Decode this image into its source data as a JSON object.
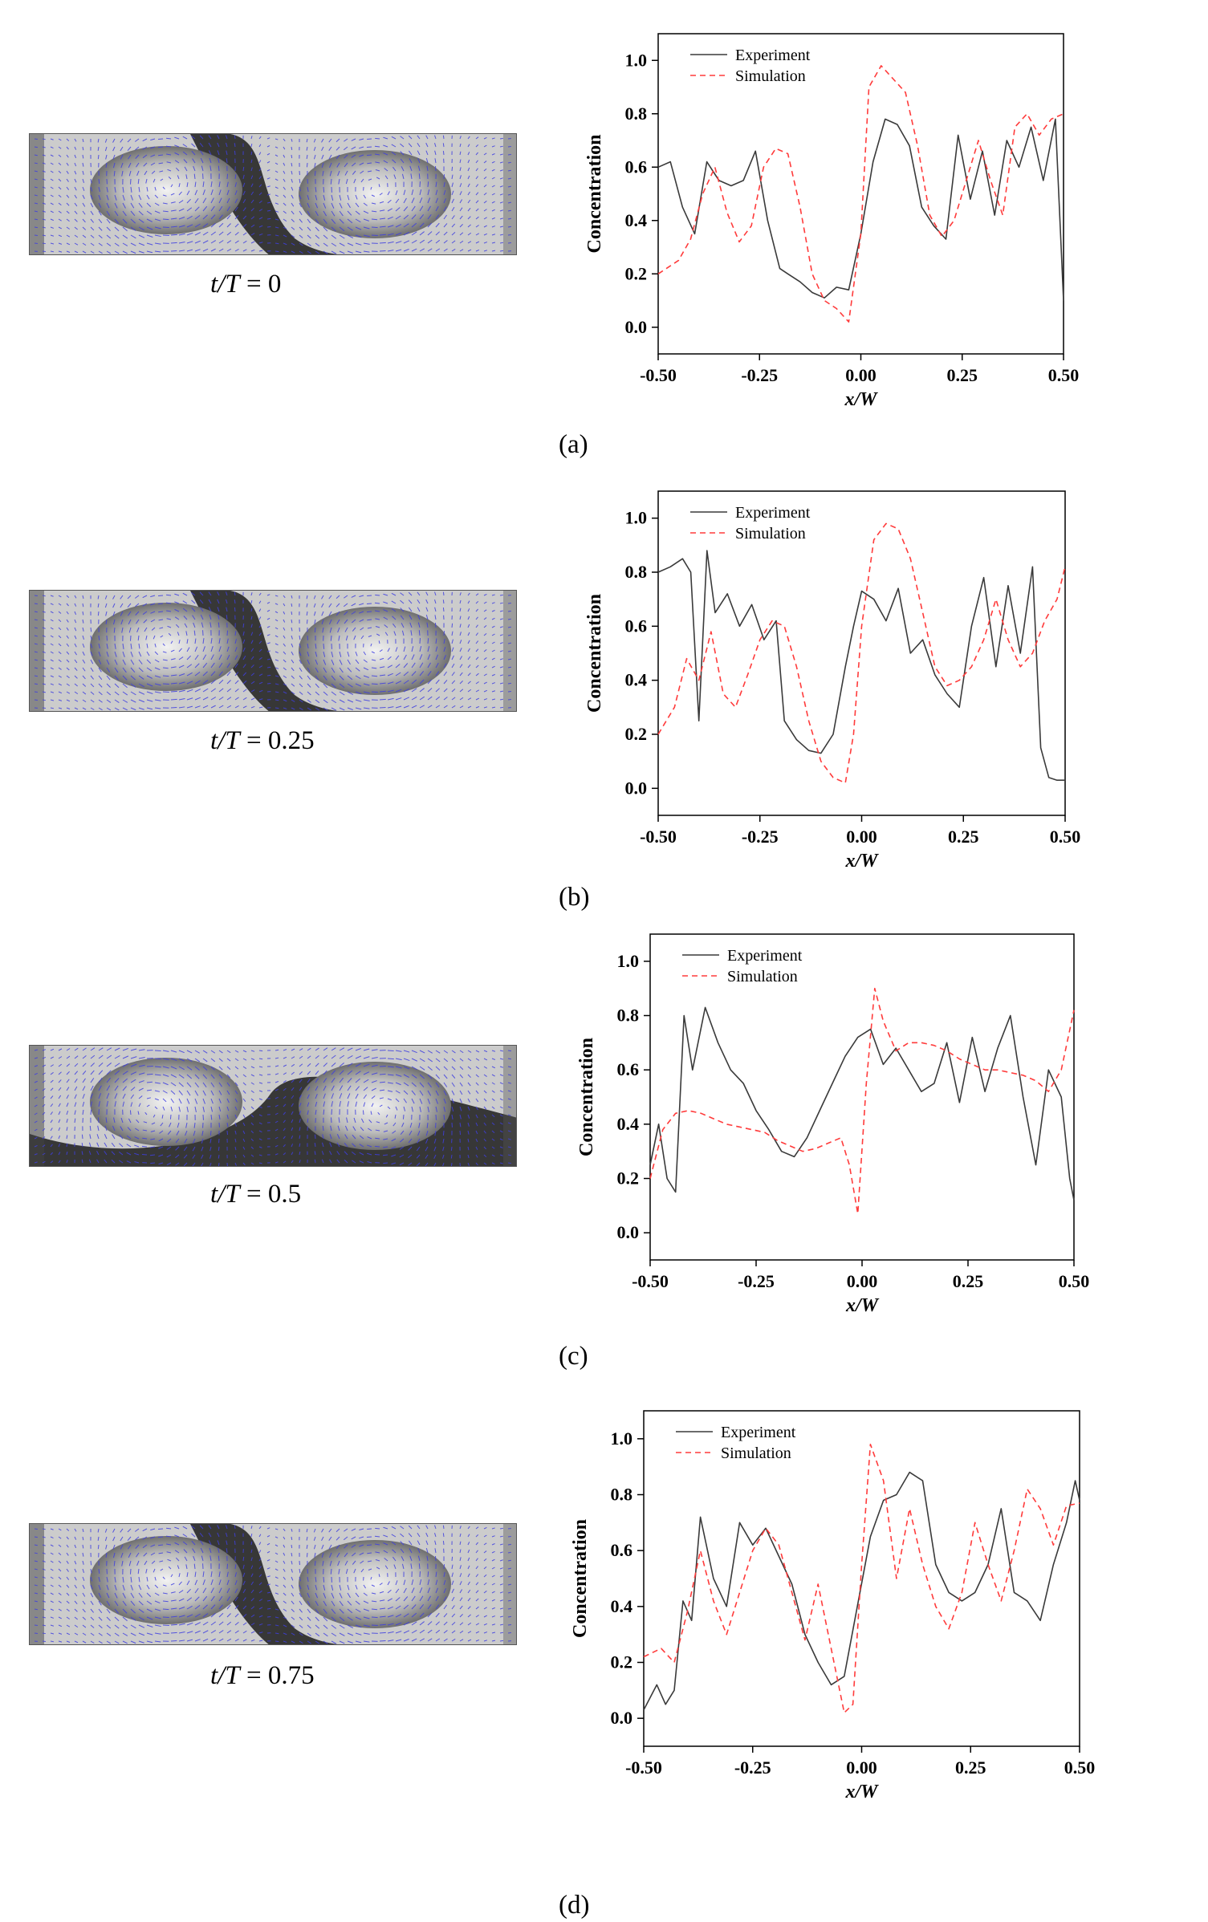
{
  "panels": [
    {
      "label": "(a)",
      "time_var": "t/T",
      "time_eq": "= 0"
    },
    {
      "label": "(b)",
      "time_var": "t/T",
      "time_eq": "= 0.25"
    },
    {
      "label": "(c)",
      "time_var": "t/T",
      "time_eq": "= 0.5"
    },
    {
      "label": "(d)",
      "time_var": "t/T",
      "time_eq": "= 0.75"
    }
  ],
  "colors": {
    "experiment": "#3a3a3a",
    "simulation": "#ff3b3b",
    "vectors": "#3f3fe0"
  },
  "chart_data": [
    {
      "type": "line",
      "xlabel": "x/W",
      "ylabel": "Concentration",
      "xlim": [
        -0.5,
        0.5
      ],
      "ylim": [
        -0.1,
        1.1
      ],
      "xticks": [
        "-0.50",
        "-0.25",
        "0.00",
        "0.25",
        "0.50"
      ],
      "yticks": [
        "0.0",
        "0.2",
        "0.4",
        "0.6",
        "0.8",
        "1.0"
      ],
      "legend": "top-left",
      "series": [
        {
          "name": "Experiment",
          "style": "solid",
          "x": [
            -0.5,
            -0.47,
            -0.44,
            -0.41,
            -0.38,
            -0.35,
            -0.32,
            -0.29,
            -0.26,
            -0.23,
            -0.2,
            -0.18,
            -0.15,
            -0.12,
            -0.09,
            -0.06,
            -0.03,
            0.0,
            0.03,
            0.06,
            0.09,
            0.12,
            0.15,
            0.18,
            0.21,
            0.24,
            0.27,
            0.3,
            0.33,
            0.36,
            0.39,
            0.42,
            0.45,
            0.48,
            0.5
          ],
          "y": [
            0.6,
            0.62,
            0.45,
            0.35,
            0.62,
            0.55,
            0.53,
            0.55,
            0.66,
            0.4,
            0.22,
            0.2,
            0.17,
            0.13,
            0.11,
            0.15,
            0.14,
            0.35,
            0.62,
            0.78,
            0.76,
            0.68,
            0.45,
            0.38,
            0.33,
            0.72,
            0.48,
            0.66,
            0.42,
            0.7,
            0.6,
            0.75,
            0.55,
            0.78,
            0.1
          ]
        },
        {
          "name": "Simulation",
          "style": "dashed",
          "x": [
            -0.5,
            -0.45,
            -0.42,
            -0.39,
            -0.36,
            -0.33,
            -0.3,
            -0.27,
            -0.24,
            -0.21,
            -0.18,
            -0.15,
            -0.12,
            -0.09,
            -0.06,
            -0.03,
            0.0,
            0.02,
            0.05,
            0.08,
            0.11,
            0.14,
            0.17,
            0.2,
            0.23,
            0.26,
            0.29,
            0.32,
            0.35,
            0.38,
            0.41,
            0.44,
            0.47,
            0.5
          ],
          "y": [
            0.2,
            0.25,
            0.33,
            0.5,
            0.6,
            0.43,
            0.32,
            0.38,
            0.6,
            0.67,
            0.65,
            0.45,
            0.2,
            0.1,
            0.07,
            0.02,
            0.35,
            0.9,
            0.98,
            0.93,
            0.88,
            0.68,
            0.42,
            0.34,
            0.4,
            0.55,
            0.7,
            0.55,
            0.42,
            0.75,
            0.8,
            0.72,
            0.78,
            0.8
          ]
        }
      ]
    },
    {
      "type": "line",
      "xlabel": "x/W",
      "ylabel": "Concentration",
      "xlim": [
        -0.5,
        0.5
      ],
      "ylim": [
        -0.1,
        1.1
      ],
      "xticks": [
        "-0.50",
        "-0.25",
        "0.00",
        "0.25",
        "0.50"
      ],
      "yticks": [
        "0.0",
        "0.2",
        "0.4",
        "0.6",
        "0.8",
        "1.0"
      ],
      "legend": "top-left",
      "series": [
        {
          "name": "Experiment",
          "style": "solid",
          "x": [
            -0.5,
            -0.47,
            -0.44,
            -0.42,
            -0.4,
            -0.38,
            -0.36,
            -0.33,
            -0.3,
            -0.27,
            -0.24,
            -0.21,
            -0.19,
            -0.16,
            -0.13,
            -0.1,
            -0.07,
            -0.04,
            -0.02,
            0.0,
            0.03,
            0.06,
            0.09,
            0.12,
            0.15,
            0.18,
            0.21,
            0.24,
            0.27,
            0.3,
            0.33,
            0.36,
            0.39,
            0.42,
            0.44,
            0.46,
            0.48,
            0.5
          ],
          "y": [
            0.8,
            0.82,
            0.85,
            0.8,
            0.25,
            0.88,
            0.65,
            0.72,
            0.6,
            0.68,
            0.55,
            0.62,
            0.25,
            0.18,
            0.14,
            0.13,
            0.2,
            0.45,
            0.6,
            0.73,
            0.7,
            0.62,
            0.74,
            0.5,
            0.55,
            0.42,
            0.35,
            0.3,
            0.6,
            0.78,
            0.45,
            0.75,
            0.5,
            0.82,
            0.15,
            0.04,
            0.03,
            0.03
          ]
        },
        {
          "name": "Simulation",
          "style": "dashed",
          "x": [
            -0.5,
            -0.46,
            -0.43,
            -0.4,
            -0.37,
            -0.34,
            -0.31,
            -0.28,
            -0.25,
            -0.22,
            -0.19,
            -0.16,
            -0.13,
            -0.1,
            -0.07,
            -0.04,
            -0.02,
            0.0,
            0.03,
            0.06,
            0.09,
            0.12,
            0.15,
            0.18,
            0.21,
            0.24,
            0.27,
            0.3,
            0.33,
            0.36,
            0.39,
            0.42,
            0.45,
            0.48,
            0.5
          ],
          "y": [
            0.2,
            0.3,
            0.48,
            0.4,
            0.58,
            0.35,
            0.3,
            0.42,
            0.55,
            0.62,
            0.6,
            0.45,
            0.25,
            0.1,
            0.04,
            0.02,
            0.2,
            0.6,
            0.92,
            0.98,
            0.96,
            0.85,
            0.65,
            0.45,
            0.38,
            0.4,
            0.45,
            0.55,
            0.7,
            0.55,
            0.45,
            0.5,
            0.62,
            0.7,
            0.82
          ]
        }
      ]
    },
    {
      "type": "line",
      "xlabel": "x/W",
      "ylabel": "Concentration",
      "xlim": [
        -0.5,
        0.5
      ],
      "ylim": [
        -0.1,
        1.1
      ],
      "xticks": [
        "-0.50",
        "-0.25",
        "0.00",
        "0.25",
        "0.50"
      ],
      "yticks": [
        "0.0",
        "0.2",
        "0.4",
        "0.6",
        "0.8",
        "1.0"
      ],
      "legend": "top-left",
      "series": [
        {
          "name": "Experiment",
          "style": "solid",
          "x": [
            -0.5,
            -0.48,
            -0.46,
            -0.44,
            -0.42,
            -0.4,
            -0.37,
            -0.34,
            -0.31,
            -0.28,
            -0.25,
            -0.22,
            -0.19,
            -0.16,
            -0.13,
            -0.1,
            -0.07,
            -0.04,
            -0.01,
            0.02,
            0.05,
            0.08,
            0.11,
            0.14,
            0.17,
            0.2,
            0.23,
            0.26,
            0.29,
            0.32,
            0.35,
            0.38,
            0.41,
            0.44,
            0.47,
            0.49,
            0.5
          ],
          "y": [
            0.25,
            0.4,
            0.2,
            0.15,
            0.8,
            0.6,
            0.83,
            0.7,
            0.6,
            0.55,
            0.45,
            0.38,
            0.3,
            0.28,
            0.35,
            0.45,
            0.55,
            0.65,
            0.72,
            0.75,
            0.62,
            0.68,
            0.6,
            0.52,
            0.55,
            0.7,
            0.48,
            0.72,
            0.52,
            0.68,
            0.8,
            0.5,
            0.25,
            0.6,
            0.5,
            0.2,
            0.12
          ]
        },
        {
          "name": "Simulation",
          "style": "dashed",
          "x": [
            -0.5,
            -0.47,
            -0.44,
            -0.41,
            -0.38,
            -0.35,
            -0.32,
            -0.29,
            -0.26,
            -0.23,
            -0.2,
            -0.17,
            -0.14,
            -0.11,
            -0.08,
            -0.05,
            -0.03,
            -0.01,
            0.01,
            0.03,
            0.05,
            0.08,
            0.11,
            0.14,
            0.17,
            0.2,
            0.23,
            0.26,
            0.29,
            0.32,
            0.35,
            0.38,
            0.41,
            0.44,
            0.47,
            0.5
          ],
          "y": [
            0.2,
            0.38,
            0.44,
            0.45,
            0.44,
            0.42,
            0.4,
            0.39,
            0.38,
            0.37,
            0.34,
            0.32,
            0.3,
            0.31,
            0.33,
            0.35,
            0.25,
            0.07,
            0.55,
            0.9,
            0.78,
            0.67,
            0.7,
            0.7,
            0.69,
            0.67,
            0.64,
            0.62,
            0.6,
            0.6,
            0.59,
            0.58,
            0.56,
            0.52,
            0.6,
            0.82
          ]
        }
      ]
    },
    {
      "type": "line",
      "xlabel": "x/W",
      "ylabel": "Concentration",
      "xlim": [
        -0.5,
        0.5
      ],
      "ylim": [
        -0.1,
        1.1
      ],
      "xticks": [
        "-0.50",
        "-0.25",
        "0.00",
        "0.25",
        "0.50"
      ],
      "yticks": [
        "0.0",
        "0.2",
        "0.4",
        "0.6",
        "0.8",
        "1.0"
      ],
      "legend": "top-left",
      "series": [
        {
          "name": "Experiment",
          "style": "solid",
          "x": [
            -0.5,
            -0.47,
            -0.45,
            -0.43,
            -0.41,
            -0.39,
            -0.37,
            -0.34,
            -0.31,
            -0.28,
            -0.25,
            -0.22,
            -0.19,
            -0.16,
            -0.13,
            -0.1,
            -0.07,
            -0.04,
            -0.01,
            0.02,
            0.05,
            0.08,
            0.11,
            0.14,
            0.17,
            0.2,
            0.23,
            0.26,
            0.29,
            0.32,
            0.35,
            0.38,
            0.41,
            0.44,
            0.47,
            0.49,
            0.5
          ],
          "y": [
            0.03,
            0.12,
            0.05,
            0.1,
            0.42,
            0.35,
            0.72,
            0.5,
            0.4,
            0.7,
            0.62,
            0.68,
            0.58,
            0.48,
            0.3,
            0.2,
            0.12,
            0.15,
            0.4,
            0.65,
            0.78,
            0.8,
            0.88,
            0.85,
            0.55,
            0.45,
            0.42,
            0.45,
            0.55,
            0.75,
            0.45,
            0.42,
            0.35,
            0.55,
            0.7,
            0.85,
            0.78
          ]
        },
        {
          "name": "Simulation",
          "style": "dashed",
          "x": [
            -0.5,
            -0.46,
            -0.43,
            -0.4,
            -0.37,
            -0.34,
            -0.31,
            -0.28,
            -0.25,
            -0.22,
            -0.19,
            -0.16,
            -0.13,
            -0.1,
            -0.07,
            -0.04,
            -0.02,
            0.0,
            0.02,
            0.05,
            0.08,
            0.11,
            0.14,
            0.17,
            0.2,
            0.23,
            0.26,
            0.29,
            0.32,
            0.35,
            0.38,
            0.41,
            0.44,
            0.47,
            0.5
          ],
          "y": [
            0.22,
            0.25,
            0.2,
            0.38,
            0.6,
            0.42,
            0.3,
            0.45,
            0.6,
            0.68,
            0.62,
            0.45,
            0.28,
            0.48,
            0.25,
            0.02,
            0.05,
            0.55,
            0.98,
            0.85,
            0.5,
            0.75,
            0.55,
            0.4,
            0.32,
            0.45,
            0.7,
            0.55,
            0.42,
            0.6,
            0.82,
            0.75,
            0.62,
            0.76,
            0.77
          ]
        }
      ]
    }
  ]
}
